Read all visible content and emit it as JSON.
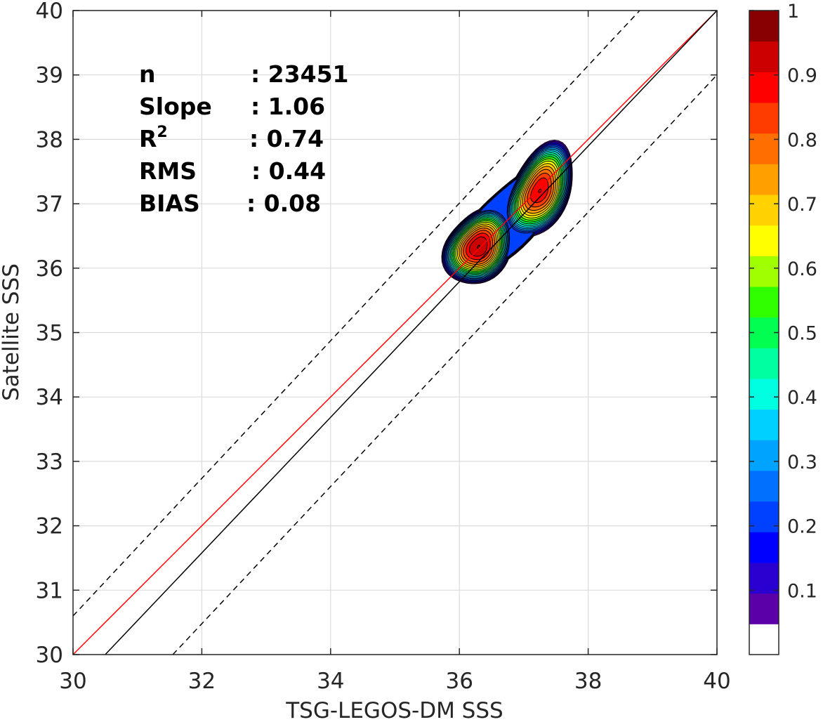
{
  "chart_data": {
    "type": "contour",
    "xlabel": "TSG-LEGOS-DM SSS",
    "ylabel": "Satellite SSS",
    "xlim": [
      30,
      40
    ],
    "ylim": [
      30,
      40
    ],
    "xticks": [
      "30",
      "32",
      "34",
      "36",
      "38",
      "40"
    ],
    "yticks": [
      "30",
      "31",
      "32",
      "33",
      "34",
      "35",
      "36",
      "37",
      "38",
      "39",
      "40"
    ],
    "grid": true,
    "stats": [
      {
        "label": "n",
        "sup": "",
        "value": ": 23451"
      },
      {
        "label": "Slope",
        "sup": "",
        "value": ": 1.06"
      },
      {
        "label": "R",
        "sup": "2",
        "value": ": 0.74"
      },
      {
        "label": "RMS",
        "sup": "",
        "value": ": 0.44"
      },
      {
        "label": "BIAS",
        "sup": "",
        "value": ": 0.08"
      }
    ],
    "lines": [
      {
        "name": "one-to-one",
        "color": "#ff0000",
        "style": "solid",
        "x": [
          30,
          40
        ],
        "y": [
          30,
          40
        ]
      },
      {
        "name": "regression",
        "color": "#000000",
        "style": "solid",
        "x": [
          30.5,
          40
        ],
        "y": [
          30,
          40
        ]
      },
      {
        "name": "upper-bound",
        "color": "#000000",
        "style": "dashed",
        "x": [
          30,
          38.8
        ],
        "y": [
          30.6,
          40
        ]
      },
      {
        "name": "lower-bound",
        "color": "#000000",
        "style": "dashed",
        "x": [
          31.55,
          40
        ],
        "y": [
          30,
          39
        ]
      }
    ],
    "density_peaks": [
      {
        "x": 36.3,
        "y": 36.33,
        "level": 1.0
      },
      {
        "x": 37.25,
        "y": 37.2,
        "level": 0.95
      }
    ],
    "colorbar": {
      "range": [
        0,
        1
      ],
      "ticks": [
        "0.1",
        "0.2",
        "0.3",
        "0.4",
        "0.5",
        "0.6",
        "0.7",
        "0.8",
        "0.9",
        "1"
      ],
      "colors": [
        "#ffffff",
        "#5b00a8",
        "#2a00d0",
        "#0000ff",
        "#0040ff",
        "#0070ff",
        "#00a4ff",
        "#00d0ff",
        "#00ffe0",
        "#00ffa0",
        "#00ff50",
        "#30ff00",
        "#a0ff00",
        "#ffff00",
        "#ffd200",
        "#ffa000",
        "#ff6e00",
        "#ff3c00",
        "#ff0000",
        "#cc0000",
        "#880000"
      ]
    }
  }
}
